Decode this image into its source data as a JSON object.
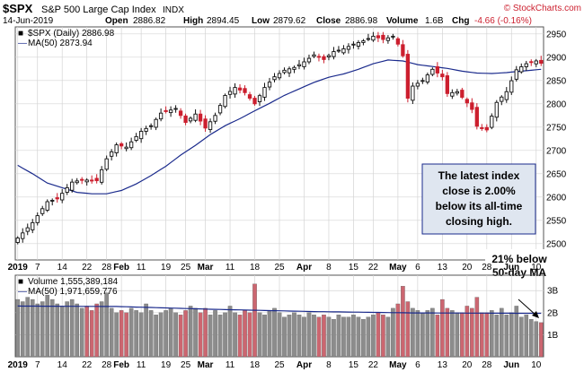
{
  "header": {
    "symbol": "$SPX",
    "name": "S&P 500 Large Cap Index",
    "exchange": "INDX",
    "watermark": "© StockCharts.com",
    "date": "14-Jun-2019",
    "open_label": "Open",
    "open": "2886.82",
    "high_label": "High",
    "high": "2894.45",
    "low_label": "Low",
    "low": "2879.62",
    "close_label": "Close",
    "close": "2886.98",
    "volume_label": "Volume",
    "volume": "1.6B",
    "chg_label": "Chg",
    "chg": "-4.66 (-0.16%)"
  },
  "colors": {
    "up": "#111111",
    "down": "#cc1f2e",
    "ma": "#1a2a8c",
    "vol_up": "#8c8c8c",
    "vol_down": "#cc6670",
    "grid": "#d4d4d4",
    "annotation_bg": "#dfe6f0",
    "annotation_border": "#1a2a8c",
    "border": "#555555"
  },
  "chart_data": [
    {
      "type": "candlestick",
      "legend": [
        {
          "marker": "■",
          "text": "$SPX (Daily) 2886.98"
        },
        {
          "marker": "—",
          "text": "MA(50) 2873.94"
        }
      ],
      "y_ticks": [
        "2950",
        "2900",
        "2850",
        "2800",
        "2750",
        "2700",
        "2650",
        "2600",
        "2550",
        "2500"
      ],
      "ylim": [
        2465,
        2965
      ],
      "x_labels": [
        "2019",
        "7",
        "14",
        "22",
        "28",
        "Feb",
        "11",
        "19",
        "25",
        "Mar",
        "11",
        "18",
        "25",
        "Apr",
        "8",
        "15",
        "22",
        "May",
        "6",
        "13",
        "20",
        "28",
        "Jun",
        "10"
      ],
      "close_anchors": [
        [
          0,
          2512
        ],
        [
          3,
          2545
        ],
        [
          6,
          2590
        ],
        [
          8,
          2596
        ],
        [
          11,
          2632
        ],
        [
          13,
          2637
        ],
        [
          16,
          2635
        ],
        [
          18,
          2682
        ],
        [
          20,
          2712
        ],
        [
          22,
          2707
        ],
        [
          25,
          2741
        ],
        [
          27,
          2753
        ],
        [
          29,
          2780
        ],
        [
          32,
          2790
        ],
        [
          34,
          2760
        ],
        [
          36,
          2778
        ],
        [
          38,
          2748
        ],
        [
          40,
          2775
        ],
        [
          42,
          2818
        ],
        [
          44,
          2835
        ],
        [
          46,
          2824
        ],
        [
          48,
          2800
        ],
        [
          50,
          2835
        ],
        [
          52,
          2858
        ],
        [
          54,
          2872
        ],
        [
          56,
          2878
        ],
        [
          58,
          2890
        ],
        [
          60,
          2905
        ],
        [
          62,
          2895
        ],
        [
          64,
          2912
        ],
        [
          66,
          2918
        ],
        [
          68,
          2928
        ],
        [
          70,
          2935
        ],
        [
          72,
          2945
        ],
        [
          74,
          2938
        ],
        [
          76,
          2945
        ],
        [
          77,
          2928
        ],
        [
          78,
          2903
        ],
        [
          79,
          2812
        ],
        [
          80,
          2838
        ],
        [
          82,
          2850
        ],
        [
          84,
          2874
        ],
        [
          86,
          2858
        ],
        [
          87,
          2822
        ],
        [
          89,
          2826
        ],
        [
          91,
          2802
        ],
        [
          92,
          2788
        ],
        [
          93,
          2752
        ],
        [
          95,
          2744
        ],
        [
          97,
          2803
        ],
        [
          99,
          2826
        ],
        [
          101,
          2873
        ],
        [
          103,
          2886
        ],
        [
          105,
          2892
        ],
        [
          106,
          2887
        ]
      ],
      "ma50_anchors": [
        [
          0,
          2668
        ],
        [
          3,
          2650
        ],
        [
          6,
          2630
        ],
        [
          9,
          2620
        ],
        [
          12,
          2610
        ],
        [
          15,
          2607
        ],
        [
          18,
          2607
        ],
        [
          21,
          2614
        ],
        [
          24,
          2628
        ],
        [
          27,
          2646
        ],
        [
          30,
          2666
        ],
        [
          33,
          2690
        ],
        [
          36,
          2711
        ],
        [
          39,
          2734
        ],
        [
          42,
          2753
        ],
        [
          45,
          2768
        ],
        [
          48,
          2785
        ],
        [
          51,
          2801
        ],
        [
          54,
          2818
        ],
        [
          57,
          2832
        ],
        [
          60,
          2846
        ],
        [
          63,
          2857
        ],
        [
          66,
          2864
        ],
        [
          69,
          2874
        ],
        [
          72,
          2886
        ],
        [
          75,
          2894
        ],
        [
          78,
          2892
        ],
        [
          81,
          2884
        ],
        [
          84,
          2880
        ],
        [
          87,
          2876
        ],
        [
          90,
          2870
        ],
        [
          93,
          2866
        ],
        [
          96,
          2865
        ],
        [
          99,
          2867
        ],
        [
          102,
          2870
        ],
        [
          104,
          2872
        ],
        [
          106,
          2874
        ]
      ],
      "annotations": [
        {
          "text_lines": [
            "The latest index",
            "close is 2.00%",
            "below its all-time",
            "closing high."
          ],
          "style": "box"
        },
        {
          "text_lines": [
            "21% below",
            "50-day MA"
          ],
          "style": "text-arrow"
        }
      ]
    },
    {
      "type": "bar",
      "legend": [
        {
          "marker": "■",
          "text": "Volume 1,555,389,184"
        },
        {
          "marker": "—",
          "text": "MA(50) 1,971,659,776"
        }
      ],
      "y_ticks": [
        "3B",
        "2B",
        "1B"
      ],
      "ylim": [
        0,
        3.7
      ],
      "unit": "billions",
      "volumes": [
        2.6,
        2.5,
        2.7,
        2.6,
        2.4,
        2.5,
        2.8,
        2.6,
        2.4,
        2.3,
        2.5,
        2.6,
        2.4,
        2.2,
        2.3,
        2.1,
        2.4,
        2.5,
        2.9,
        2.2,
        2.0,
        2.1,
        2.0,
        2.2,
        2.1,
        2.0,
        2.4,
        2.1,
        1.9,
        2.0,
        2.1,
        2.2,
        2.0,
        1.9,
        2.1,
        2.3,
        2.2,
        2.0,
        2.2,
        1.9,
        2.1,
        1.9,
        2.0,
        2.3,
        2.0,
        1.9,
        2.1,
        2.0,
        3.3,
        2.0,
        1.9,
        2.1,
        2.2,
        2.0,
        1.8,
        1.9,
        2.0,
        1.9,
        1.8,
        2.0,
        1.9,
        1.8,
        1.9,
        1.8,
        1.7,
        1.9,
        1.8,
        1.8,
        1.9,
        1.8,
        1.7,
        1.8,
        1.9,
        2.0,
        1.9,
        1.8,
        2.2,
        2.4,
        3.2,
        2.5,
        2.2,
        2.1,
        2.0,
        2.1,
        2.2,
        1.9,
        2.6,
        2.2,
        2.1,
        2.0,
        2.0,
        2.3,
        2.2,
        2.7,
        2.0,
        2.0,
        2.1,
        1.9,
        2.2,
        1.9,
        2.0,
        2.3,
        1.8,
        1.9,
        1.7,
        1.6,
        1.55
      ],
      "ma_anchors": [
        [
          0,
          2.3
        ],
        [
          20,
          2.28
        ],
        [
          40,
          2.15
        ],
        [
          60,
          2.05
        ],
        [
          80,
          1.99
        ],
        [
          106,
          1.97
        ]
      ],
      "x_labels": [
        "2019",
        "7",
        "14",
        "22",
        "28",
        "Feb",
        "11",
        "19",
        "25",
        "Mar",
        "11",
        "18",
        "25",
        "Apr",
        "8",
        "15",
        "22",
        "May",
        "6",
        "13",
        "20",
        "28",
        "Jun",
        "10"
      ]
    }
  ]
}
